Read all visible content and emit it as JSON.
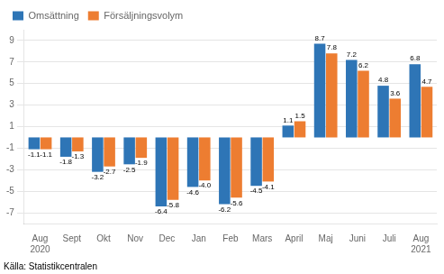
{
  "chart_data": {
    "type": "bar",
    "categories": [
      "Aug\n2020",
      "Sept",
      "Okt",
      "Nov",
      "Dec",
      "Jan",
      "Feb",
      "Mars",
      "April",
      "Maj",
      "Juni",
      "Juli",
      "Aug\n2021"
    ],
    "series": [
      {
        "name": "Omsättning",
        "color": "#2e75b6",
        "values": [
          -1.1,
          -1.8,
          -3.2,
          -2.5,
          -6.4,
          -4.6,
          -6.2,
          -4.5,
          1.1,
          8.7,
          7.2,
          4.8,
          6.8
        ]
      },
      {
        "name": "Försäljningsvolym",
        "color": "#ed7d31",
        "values": [
          -1.1,
          -1.3,
          -2.7,
          -1.9,
          -5.8,
          -4.0,
          -5.6,
          -4.1,
          1.5,
          7.8,
          6.2,
          3.6,
          4.7
        ],
        "value_labels": [
          "-1.1",
          "-1.3",
          "-2.7",
          "-1.9",
          "-5.8",
          "-4.0",
          "-5.6",
          "-4.1",
          "1.5",
          "7.8",
          "6.2",
          "3.6",
          "4.7"
        ]
      }
    ],
    "ylim": [
      -8,
      10
    ],
    "yticks": [
      -7,
      -5,
      -3,
      -1,
      1,
      3,
      5,
      7,
      9
    ],
    "grid": true,
    "legend": "upper left",
    "data_labels": true,
    "annotations": [
      "Källa: Statistikcentralen"
    ]
  }
}
